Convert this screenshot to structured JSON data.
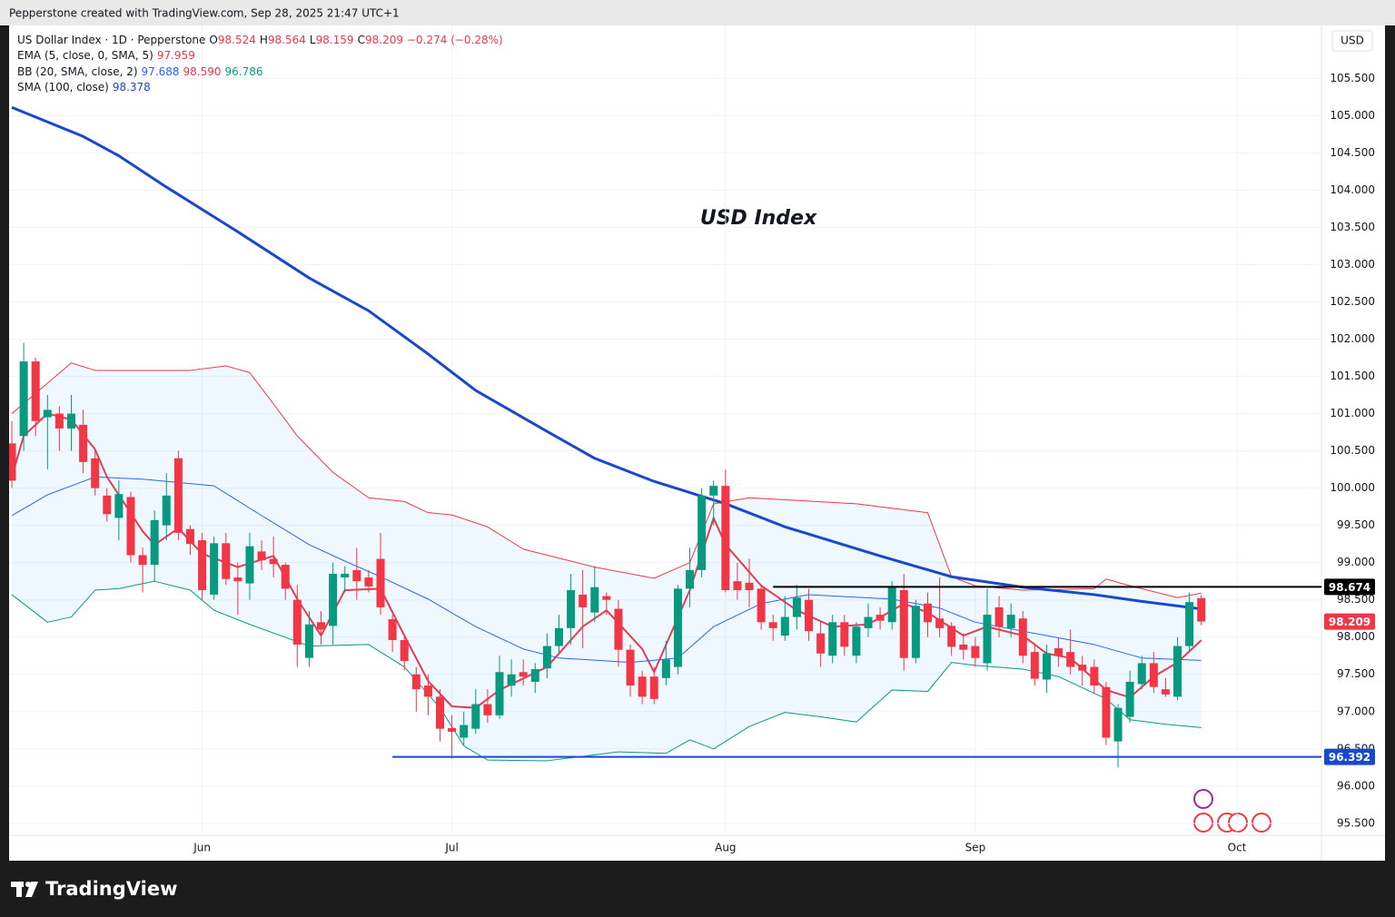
{
  "header": "Pepperstone created with TradingView.com, Sep 28, 2025 21:47 UTC+1",
  "footer": "TradingView",
  "chart_data": {
    "type": "candlestick",
    "title": "USD Index",
    "currency": "USD",
    "up_color": "#089981",
    "down_color": "#f23645",
    "grid": true,
    "ylim": [
      95.34,
      106.21
    ],
    "yticks": [
      {
        "value": 95.5,
        "label": "95.500"
      },
      {
        "value": 96,
        "label": "96.000"
      },
      {
        "value": 96.5,
        "label": "96.500"
      },
      {
        "value": 97,
        "label": "97.000"
      },
      {
        "value": 97.5,
        "label": "97.500"
      },
      {
        "value": 98,
        "label": "98.000"
      },
      {
        "value": 98.5,
        "label": "98.500"
      },
      {
        "value": 99,
        "label": "99.000"
      },
      {
        "value": 99.5,
        "label": "99.500"
      },
      {
        "value": 100,
        "label": "100.000"
      },
      {
        "value": 100.5,
        "label": "100.500"
      },
      {
        "value": 101,
        "label": "101.000"
      },
      {
        "value": 101.5,
        "label": "101.500"
      },
      {
        "value": 102,
        "label": "102.000"
      },
      {
        "value": 102.5,
        "label": "102.500"
      },
      {
        "value": 103,
        "label": "103.000"
      },
      {
        "value": 103.5,
        "label": "103.500"
      },
      {
        "value": 104,
        "label": "104.000"
      },
      {
        "value": 104.5,
        "label": "104.500"
      },
      {
        "value": 105,
        "label": "105.000"
      },
      {
        "value": 105.5,
        "label": "105.500"
      }
    ],
    "xlim": [
      -0.23,
      110.1
    ],
    "xticks": [
      {
        "value": 16,
        "label": "Jun"
      },
      {
        "value": 37,
        "label": "Jul"
      },
      {
        "value": 60,
        "label": "Aug"
      },
      {
        "value": 81,
        "label": "Sep"
      },
      {
        "value": 103,
        "label": "Oct"
      }
    ],
    "ohlc_labels": [
      "O",
      "H",
      "L",
      "C"
    ],
    "change_label": "−0.274 (−0.28%)",
    "series": [
      {
        "name": "US Dollar Index · 1D · Pepperstone",
        "open": [
          100.6,
          100.7,
          101.7,
          100.95,
          101.0,
          100.8,
          100.85,
          100.4,
          99.9,
          99.6,
          99.88,
          99.1,
          98.97,
          99.5,
          100.4,
          99.45,
          99.3,
          98.57,
          99.26,
          98.8,
          98.72,
          99.15,
          99.05,
          98.97,
          98.5,
          97.72,
          98.2,
          98.15,
          98.8,
          98.9,
          98.8,
          99.05,
          98.24,
          97.96,
          97.5,
          97.35,
          97.2,
          96.78,
          96.65,
          96.77,
          97.1,
          96.95,
          97.35,
          97.53,
          97.4,
          97.58,
          97.88,
          98.12,
          98.57,
          98.33,
          98.55,
          98.38,
          97.83,
          97.47,
          97.47,
          97.45,
          97.6,
          98.65,
          98.9,
          99.9,
          100.03,
          98.75,
          98.73,
          98.65,
          98.2,
          98.02,
          98.27,
          98.5,
          98.05,
          97.75,
          98.2,
          97.75,
          98.12,
          98.3,
          98.2,
          98.63,
          97.72,
          98.45,
          98.25,
          98.15,
          97.9,
          97.88,
          97.65,
          98.4,
          98.12,
          98.25,
          97.8,
          97.43,
          97.85,
          97.8,
          97.63,
          97.6,
          97.33,
          96.6,
          96.93,
          97.37,
          97.65,
          97.3,
          97.2,
          97.88,
          98.524
        ],
        "high": [
          100.9,
          101.95,
          101.75,
          101.25,
          101.1,
          101.25,
          101.05,
          100.5,
          100.0,
          100.1,
          99.95,
          99.2,
          99.7,
          100.2,
          100.5,
          99.5,
          99.4,
          99.35,
          99.4,
          99.0,
          99.4,
          99.3,
          99.35,
          99.0,
          98.7,
          98.35,
          98.35,
          99.0,
          98.95,
          99.2,
          98.9,
          99.4,
          98.3,
          98.0,
          97.6,
          97.5,
          97.3,
          96.95,
          97.0,
          97.3,
          97.3,
          97.75,
          97.7,
          97.7,
          97.65,
          98.05,
          98.3,
          98.85,
          98.9,
          98.95,
          98.6,
          98.5,
          97.9,
          97.55,
          97.6,
          97.95,
          98.7,
          99.2,
          100.0,
          100.1,
          100.25,
          99.0,
          99.05,
          98.7,
          98.3,
          98.55,
          98.7,
          98.65,
          98.2,
          98.3,
          98.3,
          98.2,
          98.45,
          98.4,
          98.75,
          98.85,
          98.5,
          98.6,
          98.8,
          98.2,
          98.05,
          98.0,
          98.65,
          98.55,
          98.45,
          98.35,
          97.9,
          97.9,
          98.0,
          98.1,
          97.75,
          97.7,
          97.4,
          97.1,
          97.55,
          97.75,
          97.8,
          97.45,
          98.0,
          98.6,
          98.564
        ],
        "low": [
          100.0,
          100.5,
          100.7,
          100.25,
          100.5,
          100.5,
          100.2,
          99.9,
          99.55,
          99.3,
          99.0,
          98.6,
          98.75,
          99.3,
          99.3,
          99.1,
          98.5,
          98.5,
          98.7,
          98.3,
          98.5,
          98.9,
          98.8,
          98.5,
          97.6,
          97.6,
          97.9,
          97.9,
          98.6,
          98.5,
          98.6,
          98.3,
          97.8,
          97.55,
          97.0,
          96.95,
          96.6,
          96.37,
          96.55,
          96.7,
          96.85,
          96.9,
          97.2,
          97.35,
          97.25,
          97.45,
          97.8,
          97.9,
          97.85,
          98.2,
          98.3,
          97.6,
          97.2,
          97.1,
          97.1,
          97.35,
          97.5,
          98.4,
          98.8,
          99.5,
          98.6,
          98.5,
          98.4,
          98.1,
          97.95,
          97.95,
          98.1,
          97.95,
          97.6,
          97.65,
          97.75,
          97.65,
          98.0,
          98.1,
          98.1,
          97.55,
          97.65,
          98.0,
          98.0,
          97.75,
          97.7,
          97.6,
          97.55,
          98.0,
          98.0,
          97.65,
          97.35,
          97.25,
          97.6,
          97.5,
          97.35,
          97.25,
          96.55,
          96.25,
          96.85,
          97.3,
          97.25,
          97.2,
          97.15,
          97.8,
          98.159
        ],
        "close": [
          100.1,
          101.7,
          100.9,
          101.05,
          100.8,
          101.0,
          100.35,
          100.0,
          99.65,
          99.92,
          99.1,
          98.97,
          99.57,
          99.9,
          99.4,
          99.25,
          98.63,
          99.26,
          98.78,
          98.75,
          99.22,
          99.03,
          98.98,
          98.65,
          97.9,
          98.17,
          98.1,
          98.85,
          98.85,
          98.75,
          98.68,
          98.4,
          97.96,
          97.68,
          97.3,
          97.2,
          96.77,
          96.73,
          96.82,
          97.1,
          96.95,
          97.53,
          97.5,
          97.47,
          97.57,
          97.88,
          98.12,
          98.63,
          98.4,
          98.67,
          98.5,
          97.83,
          97.35,
          97.2,
          97.17,
          97.7,
          98.65,
          98.9,
          99.9,
          100.03,
          98.63,
          98.63,
          98.63,
          98.2,
          98.12,
          98.27,
          98.53,
          98.08,
          97.78,
          98.2,
          97.87,
          98.14,
          98.27,
          98.22,
          98.67,
          97.72,
          98.42,
          98.2,
          98.12,
          97.87,
          97.83,
          97.72,
          98.3,
          98.14,
          98.3,
          97.75,
          97.44,
          97.78,
          97.75,
          97.6,
          97.55,
          97.35,
          96.65,
          97.05,
          97.4,
          97.65,
          97.33,
          97.23,
          97.88,
          98.47,
          98.209
        ]
      }
    ],
    "indicators": [
      {
        "name": "EMA (5, close, 0, SMA, 5)",
        "lines": [
          {
            "color": "#f23645",
            "width": 2,
            "readout": "97.959",
            "x": [
              0,
              1,
              3,
              5,
              7,
              8,
              11,
              12,
              14,
              16,
              19,
              22,
              24,
              26,
              28,
              31,
              33,
              35,
              37,
              39,
              41,
              45,
              48,
              50,
              53,
              54,
              57,
              59,
              60,
              63,
              66,
              69,
              72,
              75,
              77,
              80,
              82,
              85,
              87,
              89,
              92,
              94,
              96,
              98,
              100
            ],
            "values": [
              100.15,
              100.7,
              101.0,
              100.92,
              100.52,
              100.15,
              99.42,
              99.24,
              99.46,
              99.12,
              98.94,
              99.09,
              98.51,
              98.02,
              98.63,
              98.65,
              98.02,
              97.41,
              97.07,
              97.05,
              97.29,
              97.6,
              98.14,
              98.36,
              97.84,
              97.53,
              98.63,
              99.6,
              99.24,
              98.69,
              98.36,
              98.14,
              98.17,
              98.45,
              98.33,
              98.02,
              98.14,
              98.02,
              97.78,
              97.72,
              97.29,
              97.19,
              97.47,
              97.66,
              97.959
            ]
          }
        ]
      },
      {
        "name": "BB (20, SMA, close, 2)",
        "fill": "rgba(33,150,243,0.07)",
        "lines": [
          {
            "color": "#2962ff",
            "width": 1,
            "readout": "97.688",
            "x": [
              0,
              3,
              7,
              11,
              17,
              20,
              25,
              28,
              31,
              35,
              39,
              43,
              46,
              52,
              56,
              59,
              63,
              67,
              74,
              78,
              81,
              87,
              91,
              95,
              100
            ],
            "values": [
              99.63,
              99.91,
              100.15,
              100.12,
              100.03,
              99.73,
              99.24,
              99.02,
              98.81,
              98.51,
              98.14,
              97.84,
              97.72,
              97.66,
              97.72,
              98.14,
              98.45,
              98.57,
              98.51,
              98.39,
              98.2,
              98.02,
              97.9,
              97.72,
              97.688
            ]
          },
          {
            "color": "#f23645",
            "width": 1,
            "readout": "98.590",
            "x": [
              0,
              5,
              7,
              15,
              18,
              20,
              22,
              24,
              27,
              30,
              33,
              35,
              37,
              40,
              43,
              46,
              49,
              54,
              57,
              59,
              62,
              71,
              77,
              79,
              81,
              85,
              91,
              92,
              94,
              98,
              100
            ],
            "values": [
              101.0,
              101.68,
              101.58,
              101.58,
              101.64,
              101.55,
              101.13,
              100.7,
              100.21,
              99.87,
              99.82,
              99.67,
              99.64,
              99.48,
              99.18,
              99.06,
              98.94,
              98.79,
              99.0,
              99.79,
              99.87,
              99.79,
              99.67,
              98.81,
              98.69,
              98.63,
              98.65,
              98.78,
              98.69,
              98.53,
              98.59
            ]
          },
          {
            "color": "#089981",
            "width": 1,
            "readout": "96.786",
            "x": [
              0,
              3,
              5,
              7,
              9,
              12,
              15,
              17,
              20,
              25,
              30,
              33,
              36,
              38,
              40,
              45,
              51,
              55,
              57,
              59,
              62,
              65,
              68,
              71,
              74,
              77,
              79,
              81,
              85,
              88,
              92,
              94,
              97,
              100
            ],
            "values": [
              98.57,
              98.2,
              98.27,
              98.63,
              98.65,
              98.75,
              98.63,
              98.36,
              98.17,
              97.88,
              97.9,
              97.6,
              97.05,
              96.54,
              96.35,
              96.34,
              96.46,
              96.44,
              96.62,
              96.5,
              96.8,
              96.99,
              96.93,
              96.86,
              97.29,
              97.27,
              97.66,
              97.62,
              97.57,
              97.47,
              97.17,
              96.89,
              96.83,
              96.786
            ]
          }
        ]
      },
      {
        "name": "SMA (100, close)",
        "lines": [
          {
            "color": "#1848cc",
            "width": 3,
            "readout": "98.378",
            "x": [
              0,
              6,
              9,
              13,
              19,
              25,
              30,
              35,
              39,
              45,
              49,
              54,
              60,
              65,
              73,
              79,
              85,
              91,
              95,
              100
            ],
            "values": [
              105.11,
              104.72,
              104.46,
              104.04,
              103.44,
              102.82,
              102.38,
              101.8,
              101.31,
              100.76,
              100.4,
              100.09,
              99.79,
              99.48,
              99.09,
              98.81,
              98.67,
              98.57,
              98.48,
              98.378
            ]
          }
        ]
      }
    ],
    "levels": [
      {
        "value": 98.674,
        "color": "#000000",
        "start": 64
      },
      {
        "value": 96.392,
        "color": "#1848cc",
        "start": 32
      }
    ]
  }
}
